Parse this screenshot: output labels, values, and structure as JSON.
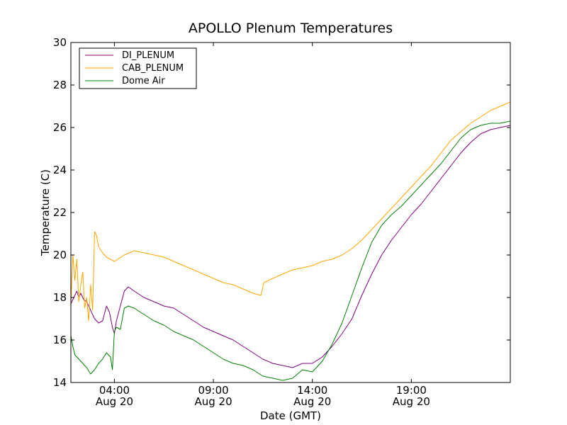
{
  "chart_data": {
    "type": "line",
    "title": "APOLLO Plenum Temperatures",
    "xlabel": "Date (GMT)",
    "ylabel": "Temperature (C)",
    "xlim": [
      1.8,
      24.0
    ],
    "ylim": [
      14,
      30
    ],
    "grid": false,
    "legend_position": "top-left",
    "y_ticks": [
      {
        "value": 14,
        "label": "14"
      },
      {
        "value": 16,
        "label": "16"
      },
      {
        "value": 18,
        "label": "18"
      },
      {
        "value": 20,
        "label": "20"
      },
      {
        "value": 22,
        "label": "22"
      },
      {
        "value": 24,
        "label": "24"
      },
      {
        "value": 26,
        "label": "26"
      },
      {
        "value": 28,
        "label": "28"
      },
      {
        "value": 30,
        "label": "30"
      }
    ],
    "x_ticks": [
      {
        "value": 4,
        "time": "04:00",
        "date": "Aug 20"
      },
      {
        "value": 9,
        "time": "09:00",
        "date": "Aug 20"
      },
      {
        "value": 14,
        "time": "14:00",
        "date": "Aug 20"
      },
      {
        "value": 19,
        "time": "19:00",
        "date": "Aug 20"
      }
    ],
    "series": [
      {
        "name": "DI_PLENUM",
        "color": "#800080",
        "x": [
          1.8,
          1.95,
          2.1,
          2.2,
          2.3,
          2.45,
          2.6,
          2.8,
          3.0,
          3.2,
          3.4,
          3.6,
          3.75,
          3.9,
          4.0,
          4.1,
          4.3,
          4.5,
          4.7,
          5.0,
          5.5,
          6.0,
          6.5,
          7.0,
          7.5,
          8.0,
          8.5,
          9.0,
          9.5,
          10.0,
          10.5,
          11.0,
          11.5,
          12.0,
          12.5,
          13.0,
          13.5,
          14.0,
          14.5,
          15.0,
          15.5,
          16.0,
          16.5,
          17.0,
          17.5,
          18.0,
          18.5,
          19.0,
          19.5,
          20.0,
          20.5,
          21.0,
          21.5,
          22.0,
          22.5,
          23.0,
          23.5,
          24.0
        ],
        "values": [
          17.7,
          18.0,
          18.3,
          18.0,
          18.2,
          17.9,
          17.8,
          17.4,
          17.0,
          16.8,
          16.9,
          17.6,
          17.3,
          16.6,
          16.3,
          16.9,
          17.6,
          18.3,
          18.5,
          18.3,
          18.0,
          17.8,
          17.6,
          17.5,
          17.2,
          16.9,
          16.6,
          16.4,
          16.2,
          16.0,
          15.7,
          15.4,
          15.1,
          14.9,
          14.8,
          14.7,
          14.9,
          14.9,
          15.2,
          15.7,
          16.3,
          17.0,
          18.1,
          19.1,
          20.0,
          20.7,
          21.3,
          21.9,
          22.4,
          23.0,
          23.6,
          24.2,
          24.8,
          25.3,
          25.7,
          25.9,
          26.0,
          26.1
        ]
      },
      {
        "name": "CAB_PLENUM",
        "color": "#ffa500",
        "x": [
          1.8,
          1.9,
          2.0,
          2.1,
          2.2,
          2.3,
          2.4,
          2.5,
          2.6,
          2.7,
          2.8,
          2.9,
          3.0,
          3.1,
          3.2,
          3.4,
          3.6,
          3.8,
          4.0,
          4.5,
          5.0,
          5.5,
          6.0,
          6.5,
          7.0,
          7.5,
          8.0,
          8.5,
          9.0,
          9.5,
          10.0,
          10.5,
          11.0,
          11.4,
          11.55,
          12.0,
          12.5,
          13.0,
          13.5,
          14.0,
          14.5,
          15.0,
          15.5,
          16.0,
          16.5,
          17.0,
          17.5,
          18.0,
          18.5,
          19.0,
          19.5,
          20.0,
          20.5,
          21.0,
          21.5,
          22.0,
          22.5,
          23.0,
          23.5,
          24.0
        ],
        "values": [
          17.6,
          20.0,
          18.8,
          19.8,
          17.8,
          18.6,
          19.2,
          17.5,
          18.0,
          16.9,
          18.6,
          17.4,
          21.1,
          20.9,
          20.4,
          20.1,
          19.9,
          19.8,
          19.7,
          20.0,
          20.2,
          20.1,
          20.0,
          19.9,
          19.7,
          19.5,
          19.3,
          19.1,
          18.9,
          18.7,
          18.6,
          18.4,
          18.2,
          18.1,
          18.7,
          18.9,
          19.1,
          19.3,
          19.4,
          19.5,
          19.7,
          19.8,
          20.0,
          20.3,
          20.7,
          21.2,
          21.7,
          22.2,
          22.7,
          23.2,
          23.7,
          24.2,
          24.8,
          25.4,
          25.8,
          26.2,
          26.5,
          26.8,
          27.0,
          27.2
        ]
      },
      {
        "name": "Dome Air",
        "color": "#008000",
        "x": [
          1.8,
          1.9,
          2.0,
          2.2,
          2.4,
          2.6,
          2.8,
          3.0,
          3.2,
          3.4,
          3.6,
          3.8,
          3.9,
          4.0,
          4.1,
          4.3,
          4.5,
          4.7,
          5.0,
          5.5,
          6.0,
          6.5,
          7.0,
          7.5,
          8.0,
          8.5,
          9.0,
          9.5,
          10.0,
          10.5,
          11.0,
          11.5,
          12.0,
          12.5,
          13.0,
          13.5,
          14.0,
          14.5,
          15.0,
          15.5,
          16.0,
          16.5,
          17.0,
          17.5,
          18.0,
          18.5,
          19.0,
          19.5,
          20.0,
          20.5,
          21.0,
          21.5,
          22.0,
          22.5,
          23.0,
          23.5,
          24.0
        ],
        "values": [
          16.2,
          15.7,
          15.3,
          15.1,
          14.9,
          14.7,
          14.4,
          14.6,
          14.9,
          15.1,
          15.4,
          15.2,
          14.6,
          16.4,
          16.6,
          16.5,
          17.5,
          17.6,
          17.5,
          17.2,
          16.9,
          16.7,
          16.4,
          16.2,
          16.0,
          15.7,
          15.4,
          15.1,
          14.9,
          14.8,
          14.6,
          14.3,
          14.2,
          14.1,
          14.2,
          14.6,
          14.5,
          15.0,
          15.8,
          16.8,
          18.1,
          19.4,
          20.6,
          21.4,
          21.9,
          22.3,
          22.8,
          23.3,
          23.8,
          24.3,
          24.9,
          25.5,
          25.9,
          26.1,
          26.2,
          26.2,
          26.3
        ]
      }
    ]
  }
}
